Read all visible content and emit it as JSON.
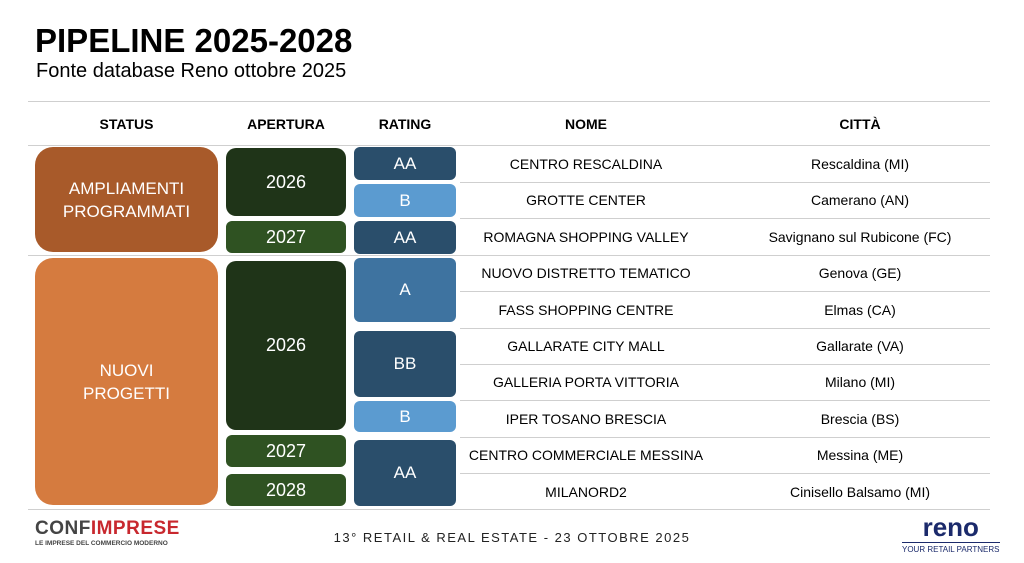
{
  "title": "PIPELINE 2025-2028",
  "subtitle": "Fonte database Reno ottobre 2025",
  "headers": {
    "status": "STATUS",
    "apertura": "APERTURA",
    "rating": "RATING",
    "nome": "NOME",
    "citta": "CITTÀ"
  },
  "status": [
    {
      "label": "AMPLIAMENTI PROGRAMMATI",
      "color": "#a85a2a"
    },
    {
      "label": "NUOVI PROGETTI",
      "color": "#d57b3f"
    }
  ],
  "apertura": [
    "2026",
    "2027",
    "2026",
    "2027",
    "2028"
  ],
  "ratings": [
    "AA",
    "B",
    "AA",
    "A",
    "BB",
    "B",
    "AA"
  ],
  "rows": [
    {
      "nome": "CENTRO RESCALDINA",
      "citta": "Rescaldina (MI)"
    },
    {
      "nome": "GROTTE CENTER",
      "citta": "Camerano (AN)"
    },
    {
      "nome": "ROMAGNA SHOPPING VALLEY",
      "citta": "Savignano sul Rubicone (FC)"
    },
    {
      "nome": "NUOVO DISTRETTO TEMATICO",
      "citta": "Genova (GE)"
    },
    {
      "nome": "FASS SHOPPING CENTRE",
      "citta": "Elmas (CA)"
    },
    {
      "nome": "GALLARATE CITY MALL",
      "citta": "Gallarate (VA)"
    },
    {
      "nome": "GALLERIA PORTA VITTORIA",
      "citta": "Milano (MI)"
    },
    {
      "nome": "IPER TOSANO BRESCIA",
      "citta": "Brescia (BS)"
    },
    {
      "nome": "CENTRO COMMERCIALE MESSINA",
      "citta": "Messina (ME)"
    },
    {
      "nome": "MILANORD2",
      "citta": "Cinisello Balsamo (MI)"
    }
  ],
  "footer": {
    "text": "13° RETAIL & REAL ESTATE - 23 OTTOBRE 2025",
    "logo_left": "CONFIMPRESE",
    "logo_left_tagline": "LE IMPRESE DEL COMMERCIO MODERNO",
    "logo_right": "reno",
    "logo_right_tagline": "YOUR RETAIL PARTNERS"
  },
  "colors": {
    "dark_green": "#1f3418",
    "green": "#2f5222",
    "dark_blue": "#2a4e6b",
    "mid_blue": "#3e73a0",
    "light_blue": "#5b9bd0"
  }
}
